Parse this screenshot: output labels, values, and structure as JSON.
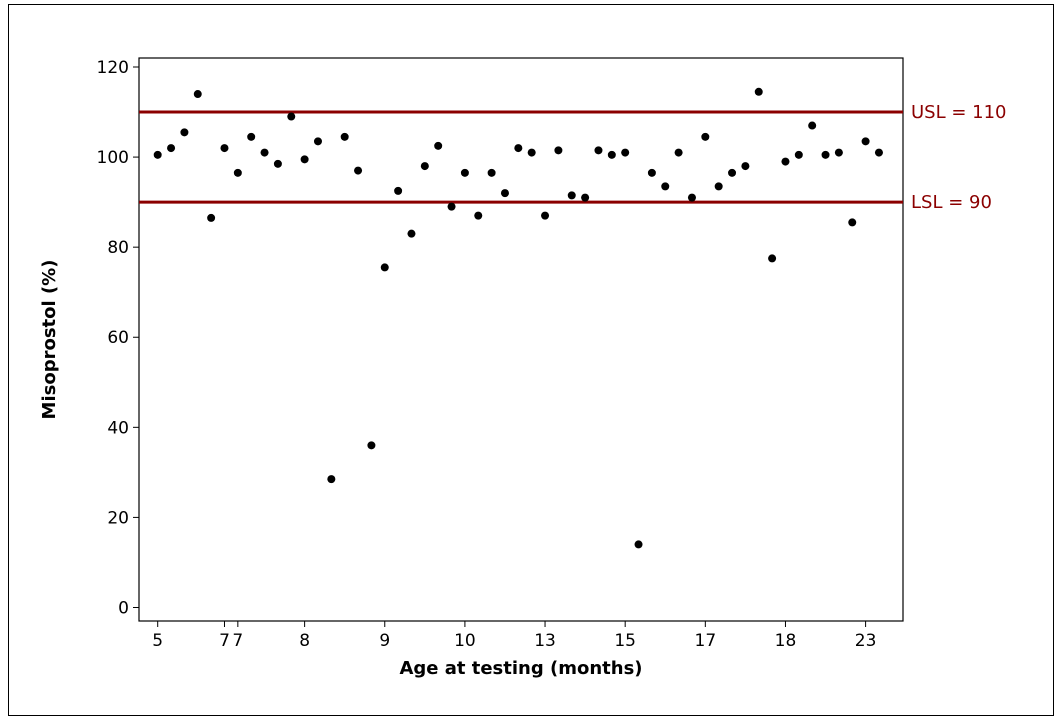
{
  "chart_data": {
    "type": "scatter",
    "title": "",
    "xlabel": "Age at testing (months)",
    "ylabel": "Misoprostol (%)",
    "ylim": [
      -3,
      122
    ],
    "yticks": [
      0,
      20,
      40,
      60,
      80,
      100,
      120
    ],
    "x_tick_labels": [
      "5",
      "7",
      "7",
      "8",
      "9",
      "10",
      "13",
      "15",
      "17",
      "18",
      "23"
    ],
    "x_tick_positions": [
      1,
      6,
      7,
      12,
      18,
      24,
      30,
      36,
      42,
      48,
      54
    ],
    "xlim": [
      -0.4,
      56.8
    ],
    "grid": false,
    "legend": "none",
    "marker_color": "#000000",
    "reference_lines": [
      {
        "label": "USL = 110",
        "value": 110,
        "color": "#8b0000"
      },
      {
        "label": "LSL = 90",
        "value": 90,
        "color": "#8b0000"
      }
    ],
    "points": [
      {
        "x": 1,
        "y": 100.5
      },
      {
        "x": 2,
        "y": 102
      },
      {
        "x": 3,
        "y": 105.5
      },
      {
        "x": 4,
        "y": 114
      },
      {
        "x": 5,
        "y": 86.5
      },
      {
        "x": 6,
        "y": 102
      },
      {
        "x": 7,
        "y": 96.5
      },
      {
        "x": 8,
        "y": 104.5
      },
      {
        "x": 9,
        "y": 101
      },
      {
        "x": 10,
        "y": 98.5
      },
      {
        "x": 11,
        "y": 109
      },
      {
        "x": 12,
        "y": 99.5
      },
      {
        "x": 13,
        "y": 103.5
      },
      {
        "x": 14,
        "y": 28.5
      },
      {
        "x": 15,
        "y": 104.5
      },
      {
        "x": 16,
        "y": 97
      },
      {
        "x": 17,
        "y": 36
      },
      {
        "x": 18,
        "y": 75.5
      },
      {
        "x": 19,
        "y": 92.5
      },
      {
        "x": 20,
        "y": 83
      },
      {
        "x": 21,
        "y": 98
      },
      {
        "x": 22,
        "y": 102.5
      },
      {
        "x": 23,
        "y": 89
      },
      {
        "x": 24,
        "y": 96.5
      },
      {
        "x": 25,
        "y": 87
      },
      {
        "x": 26,
        "y": 96.5
      },
      {
        "x": 27,
        "y": 92
      },
      {
        "x": 28,
        "y": 102
      },
      {
        "x": 29,
        "y": 101
      },
      {
        "x": 30,
        "y": 87
      },
      {
        "x": 31,
        "y": 101.5
      },
      {
        "x": 32,
        "y": 91.5
      },
      {
        "x": 33,
        "y": 91
      },
      {
        "x": 34,
        "y": 101.5
      },
      {
        "x": 35,
        "y": 100.5
      },
      {
        "x": 36,
        "y": 101
      },
      {
        "x": 37,
        "y": 14
      },
      {
        "x": 38,
        "y": 96.5
      },
      {
        "x": 39,
        "y": 93.5
      },
      {
        "x": 40,
        "y": 101
      },
      {
        "x": 41,
        "y": 91
      },
      {
        "x": 42,
        "y": 104.5
      },
      {
        "x": 43,
        "y": 93.5
      },
      {
        "x": 44,
        "y": 96.5
      },
      {
        "x": 45,
        "y": 98
      },
      {
        "x": 46,
        "y": 114.5
      },
      {
        "x": 47,
        "y": 77.5
      },
      {
        "x": 48,
        "y": 99
      },
      {
        "x": 49,
        "y": 100.5
      },
      {
        "x": 50,
        "y": 107
      },
      {
        "x": 51,
        "y": 100.5
      },
      {
        "x": 52,
        "y": 101
      },
      {
        "x": 53,
        "y": 85.5
      },
      {
        "x": 54,
        "y": 103.5
      },
      {
        "x": 55,
        "y": 101
      }
    ]
  }
}
